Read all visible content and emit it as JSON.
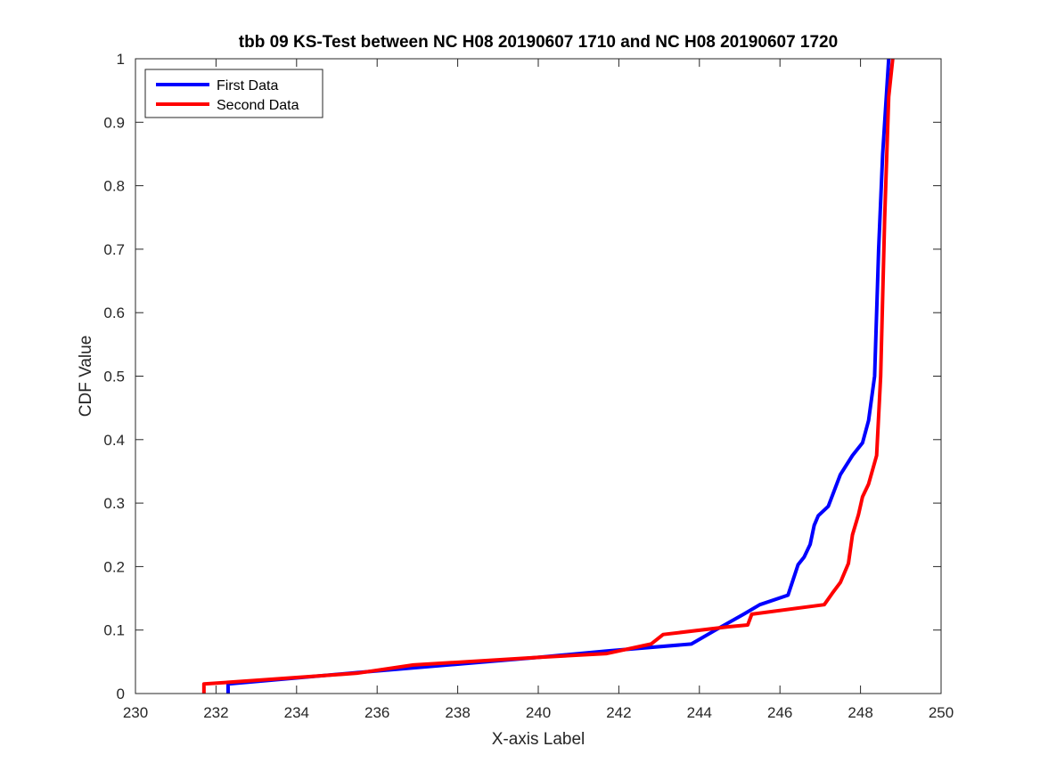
{
  "chart_data": {
    "type": "line",
    "title": "tbb 09 KS-Test between NC H08 20190607 1710 and NC H08 20190607 1720",
    "xlabel": "X-axis Label",
    "ylabel": "CDF Value",
    "xlim": [
      230,
      250
    ],
    "ylim": [
      0,
      1
    ],
    "xticks": [
      230,
      232,
      234,
      236,
      238,
      240,
      242,
      244,
      246,
      248,
      250
    ],
    "yticks": [
      0,
      0.1,
      0.2,
      0.3,
      0.4,
      0.5,
      0.6,
      0.7,
      0.8,
      0.9,
      1
    ],
    "xtick_labels": [
      "230",
      "232",
      "234",
      "236",
      "238",
      "240",
      "242",
      "244",
      "246",
      "248",
      "250"
    ],
    "ytick_labels": [
      "0",
      "0.1",
      "0.2",
      "0.3",
      "0.4",
      "0.5",
      "0.6",
      "0.7",
      "0.8",
      "0.9",
      "1"
    ],
    "grid": false,
    "legend_position": "top-left",
    "series": [
      {
        "name": "First Data",
        "color": "#0000ff",
        "x": [
          232.3,
          232.3,
          235.5,
          240.0,
          241.7,
          243.8,
          244.4,
          245.1,
          245.5,
          246.2,
          246.45,
          246.6,
          246.75,
          246.85,
          246.95,
          247.2,
          247.5,
          247.8,
          248.05,
          248.2,
          248.35,
          248.45,
          248.55,
          248.65,
          248.7
        ],
        "y": [
          0.0,
          0.015,
          0.033,
          0.057,
          0.067,
          0.078,
          0.1,
          0.125,
          0.14,
          0.155,
          0.203,
          0.215,
          0.235,
          0.265,
          0.28,
          0.295,
          0.345,
          0.375,
          0.395,
          0.43,
          0.5,
          0.7,
          0.85,
          0.95,
          1.0
        ]
      },
      {
        "name": "Second Data",
        "color": "#ff0000",
        "x": [
          231.7,
          231.7,
          235.5,
          236.9,
          240.0,
          241.7,
          242.8,
          243.1,
          244.7,
          245.2,
          245.3,
          247.1,
          247.3,
          247.5,
          247.7,
          247.8,
          247.95,
          248.05,
          248.2,
          248.4,
          248.5,
          248.6,
          248.7,
          248.8
        ],
        "y": [
          0.0,
          0.015,
          0.032,
          0.045,
          0.057,
          0.063,
          0.078,
          0.093,
          0.105,
          0.108,
          0.125,
          0.14,
          0.158,
          0.175,
          0.205,
          0.25,
          0.282,
          0.31,
          0.33,
          0.375,
          0.5,
          0.75,
          0.94,
          1.0
        ]
      }
    ]
  }
}
